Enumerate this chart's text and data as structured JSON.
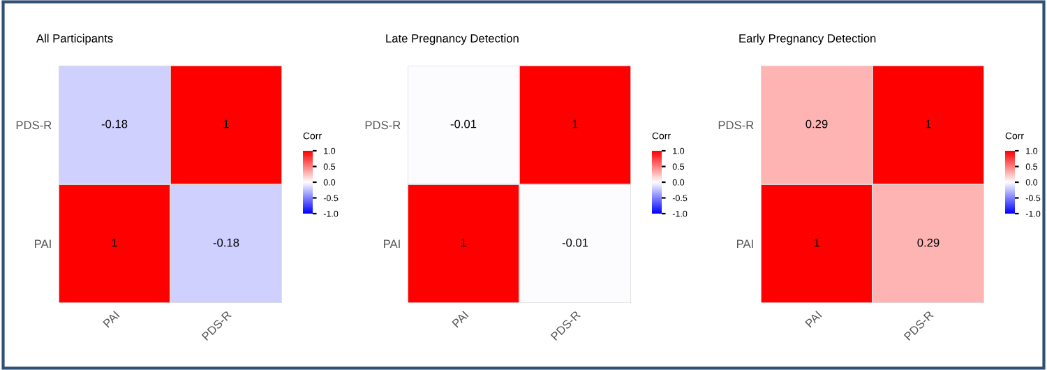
{
  "chart_data": [
    {
      "type": "heatmap",
      "title": "All Participants",
      "categories": [
        "PAI",
        "PDS-R"
      ],
      "y_categories": [
        "PDS-R",
        "PAI"
      ],
      "cells": [
        [
          -0.18,
          1
        ],
        [
          1,
          -0.18
        ]
      ],
      "data_labels": true,
      "clabel": "Corr",
      "clim": [
        -1,
        1
      ],
      "cticks": [
        {
          "value": -1,
          "label": "-1.0"
        },
        {
          "value": -0.5,
          "label": "-0.5"
        },
        {
          "value": 0,
          "label": "0.0"
        },
        {
          "value": 0.5,
          "label": "0.5"
        },
        {
          "value": 1,
          "label": "1.0"
        }
      ]
    },
    {
      "type": "heatmap",
      "title": "Late Pregnancy Detection",
      "categories": [
        "PAI",
        "PDS-R"
      ],
      "y_categories": [
        "PDS-R",
        "PAI"
      ],
      "cells": [
        [
          -0.01,
          1
        ],
        [
          1,
          -0.01
        ]
      ],
      "data_labels": true,
      "clabel": "Corr",
      "clim": [
        -1,
        1
      ],
      "cticks": [
        {
          "value": -1,
          "label": "-1.0"
        },
        {
          "value": -0.5,
          "label": "-0.5"
        },
        {
          "value": 0,
          "label": "0.0"
        },
        {
          "value": 0.5,
          "label": "0.5"
        },
        {
          "value": 1,
          "label": "1.0"
        }
      ]
    },
    {
      "type": "heatmap",
      "title": "Early Pregnancy Detection",
      "categories": [
        "PAI",
        "PDS-R"
      ],
      "y_categories": [
        "PDS-R",
        "PAI"
      ],
      "cells": [
        [
          0.29,
          1
        ],
        [
          1,
          0.29
        ]
      ],
      "data_labels": true,
      "clabel": "Corr",
      "clim": [
        -1,
        1
      ],
      "cticks": [
        {
          "value": -1,
          "label": "-1.0"
        },
        {
          "value": -0.5,
          "label": "-0.5"
        },
        {
          "value": 0,
          "label": "0.0"
        },
        {
          "value": 0.5,
          "label": "0.5"
        },
        {
          "value": 1,
          "label": "1.0"
        }
      ]
    }
  ]
}
